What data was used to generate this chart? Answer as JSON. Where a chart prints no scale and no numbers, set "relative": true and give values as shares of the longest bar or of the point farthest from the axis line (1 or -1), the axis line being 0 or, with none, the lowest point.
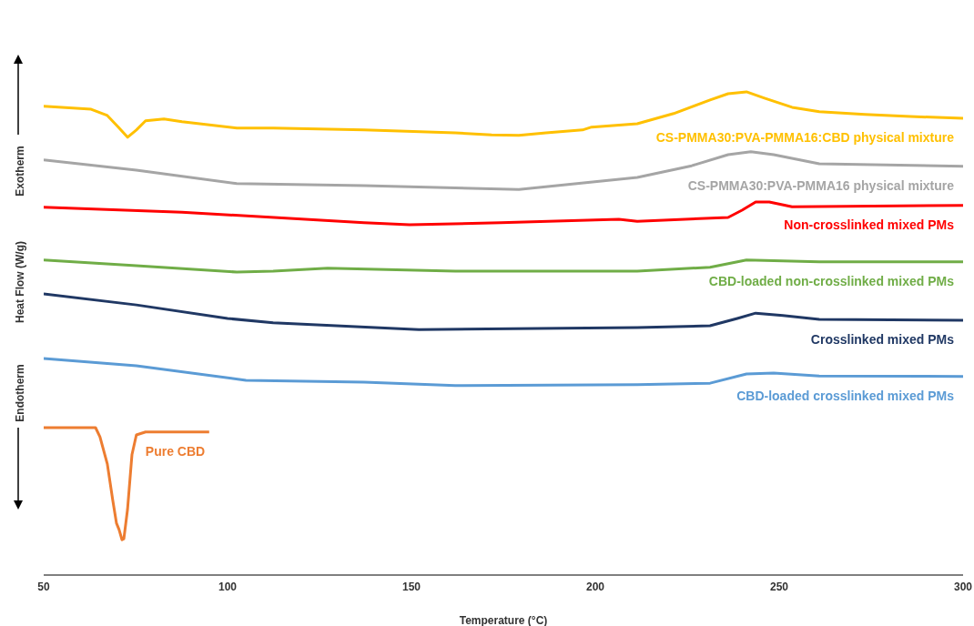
{
  "chart_data": {
    "type": "line",
    "relative": true,
    "xlabel": "Temperature (°C)",
    "ylabel": "Heat Flow (W/g)",
    "xlim": [
      50,
      300
    ],
    "xticks": [
      50,
      100,
      150,
      200,
      250,
      300
    ],
    "marker": "none",
    "line_style": "solid",
    "annotations": [
      "Exotherm",
      "Endotherm"
    ],
    "series": [
      {
        "name": "CS-PMMA30:PVA-PMMA16:CBD physical mixture",
        "color": "#ffc000",
        "x": [
          50,
          62.9,
          67.3,
          70.3,
          72.8,
          75.2,
          77.7,
          82.7,
          87.6,
          102.5,
          112.4,
          137.1,
          161.9,
          171.8,
          179.2,
          186.6,
          196.5,
          199,
          211.4,
          221.3,
          231.2,
          236.1,
          241.1,
          246,
          253.5,
          260.9,
          273.3,
          285.6,
          300
        ],
        "values": [
          0.97,
          0.964,
          0.951,
          0.927,
          0.906,
          0.921,
          0.94,
          0.944,
          0.938,
          0.925,
          0.925,
          0.921,
          0.915,
          0.911,
          0.91,
          0.915,
          0.921,
          0.927,
          0.934,
          0.955,
          0.983,
          0.996,
          1,
          0.987,
          0.968,
          0.959,
          0.953,
          0.949,
          0.945
        ]
      },
      {
        "name": "CS-PMMA30:PVA-PMMA16 physical mixture",
        "color": "#a5a5a5",
        "x": [
          50,
          75.2,
          102.5,
          137.1,
          179.2,
          211.4,
          226.2,
          236.1,
          242.3,
          248.5,
          260.9,
          300
        ],
        "values": [
          0.859,
          0.838,
          0.81,
          0.806,
          0.798,
          0.823,
          0.847,
          0.87,
          0.876,
          0.87,
          0.851,
          0.846
        ]
      },
      {
        "name": "Non-crosslinked mixed PMs",
        "color": "#ff0000",
        "x": [
          50,
          87.6,
          137.1,
          149.5,
          174.3,
          206.4,
          211.4,
          236.1,
          239.9,
          243.6,
          247.3,
          253.5,
          300
        ],
        "values": [
          0.761,
          0.751,
          0.729,
          0.725,
          0.729,
          0.736,
          0.732,
          0.74,
          0.755,
          0.772,
          0.772,
          0.762,
          0.765
        ]
      },
      {
        "name": "CBD-loaded non-crosslinked mixed PMs",
        "color": "#70ad47",
        "x": [
          50,
          75.2,
          102.5,
          112.4,
          127.2,
          161.9,
          211.4,
          231.2,
          241.1,
          251,
          260.9,
          300
        ],
        "values": [
          0.652,
          0.64,
          0.627,
          0.629,
          0.635,
          0.629,
          0.629,
          0.637,
          0.652,
          0.65,
          0.648,
          0.648
        ]
      },
      {
        "name": "Crosslinked mixed PMs",
        "color": "#203864",
        "x": [
          50,
          75.2,
          100,
          112.4,
          152,
          211.4,
          231.2,
          238.6,
          243.6,
          251,
          260.9,
          300
        ],
        "values": [
          0.582,
          0.559,
          0.531,
          0.522,
          0.508,
          0.512,
          0.516,
          0.531,
          0.542,
          0.537,
          0.529,
          0.527
        ]
      },
      {
        "name": "CBD-loaded crosslinked mixed PMs",
        "color": "#5b9bd5",
        "x": [
          50,
          75.2,
          105,
          137.1,
          161.9,
          211.4,
          231.2,
          241.1,
          248.5,
          260.9,
          300
        ],
        "values": [
          0.448,
          0.433,
          0.403,
          0.399,
          0.392,
          0.394,
          0.397,
          0.416,
          0.418,
          0.412,
          0.411
        ]
      },
      {
        "name": "Pure CBD",
        "color": "#ed7d31",
        "x": [
          50,
          64.1,
          65.3,
          67.3,
          68.8,
          69.8,
          70.5,
          71.3,
          71.8,
          72.8,
          74,
          75.2,
          77.7,
          95
        ],
        "values": [
          0.305,
          0.305,
          0.286,
          0.23,
          0.154,
          0.107,
          0.094,
          0.073,
          0.075,
          0.136,
          0.249,
          0.29,
          0.296,
          0.296
        ]
      }
    ]
  }
}
